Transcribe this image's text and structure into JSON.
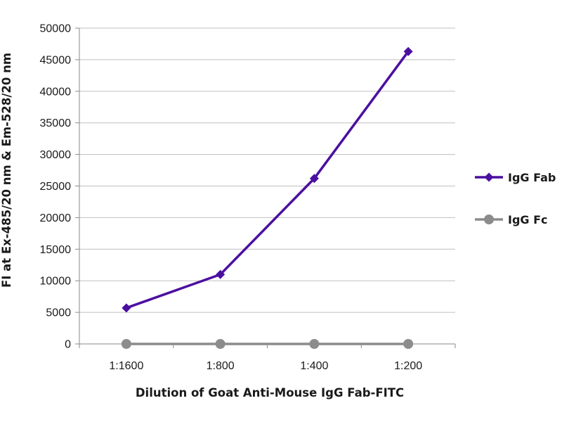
{
  "chart_data": {
    "type": "line",
    "title": "",
    "xlabel": "Dilution of Goat Anti-Mouse IgG Fab-FITC",
    "ylabel": "FI at Ex-485/20 nm & Em-528/20 nm",
    "categories": [
      "1:1600",
      "1:800",
      "1:400",
      "1:200"
    ],
    "ylim": [
      0,
      50000
    ],
    "yticks": [
      "0",
      "5000",
      "10000",
      "15000",
      "20000",
      "25000",
      "30000",
      "35000",
      "40000",
      "45000",
      "50000"
    ],
    "grid": true,
    "legend_position": "right",
    "series": [
      {
        "name": "IgG Fab",
        "values": [
          5700,
          11000,
          26200,
          46300
        ],
        "color": "#4B0FA0",
        "marker": "diamond"
      },
      {
        "name": "IgG Fc",
        "values": [
          0,
          0,
          0,
          0
        ],
        "color": "#8C8C8C",
        "marker": "circle"
      }
    ]
  }
}
